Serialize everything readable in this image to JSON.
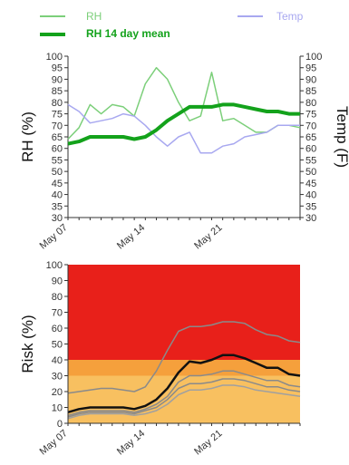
{
  "legend": {
    "rh": "RH",
    "temp": "Temp",
    "rh_mean": "RH 14 day mean",
    "colors": {
      "rh": "#7ccf7a",
      "temp": "#a8a8f0",
      "rh_mean": "#13a21b"
    }
  },
  "chart_data": [
    {
      "type": "line",
      "x": [
        "May 07",
        "May 08",
        "May 09",
        "May 10",
        "May 11",
        "May 12",
        "May 13",
        "May 14",
        "May 15",
        "May 16",
        "May 17",
        "May 18",
        "May 19",
        "May 20",
        "May 21",
        "May 22",
        "May 23",
        "May 24",
        "May 25",
        "May 26",
        "May 27",
        "May 28"
      ],
      "x_tick_labels": [
        "May 07",
        "May 14",
        "May 21"
      ],
      "series": [
        {
          "name": "RH",
          "axis": "left",
          "color": "#7ccf7a",
          "values": [
            64,
            69,
            79,
            75,
            79,
            78,
            74,
            88,
            95,
            90,
            80,
            72,
            74,
            93,
            72,
            73,
            70,
            67,
            67,
            70,
            70,
            69
          ]
        },
        {
          "name": "Temp",
          "axis": "right",
          "color": "#a8a8f0",
          "values": [
            79,
            76,
            71,
            72,
            73,
            75,
            74,
            70,
            65,
            61,
            65,
            67,
            58,
            58,
            61,
            62,
            65,
            66,
            67,
            70,
            70,
            70
          ]
        },
        {
          "name": "RH 14 day mean",
          "axis": "right",
          "color": "#13a21b",
          "values": [
            62,
            63,
            65,
            65,
            65,
            65,
            64,
            65,
            68,
            72,
            75,
            78,
            78,
            78,
            79,
            79,
            78,
            77,
            76,
            76,
            75,
            75
          ]
        }
      ],
      "ylabel": "RH (%)",
      "ylabel_right": "Temp (F)",
      "ylim": [
        30,
        100
      ],
      "yticks": [
        30,
        35,
        40,
        45,
        50,
        55,
        60,
        65,
        70,
        75,
        80,
        85,
        90,
        95,
        100
      ],
      "grid": false
    },
    {
      "type": "area",
      "x": [
        "May 07",
        "May 08",
        "May 09",
        "May 10",
        "May 11",
        "May 12",
        "May 13",
        "May 14",
        "May 15",
        "May 16",
        "May 17",
        "May 18",
        "May 19",
        "May 20",
        "May 21",
        "May 22",
        "May 23",
        "May 24",
        "May 25",
        "May 26",
        "May 27",
        "May 28"
      ],
      "x_tick_labels": [
        "May 07",
        "May 14",
        "May 21"
      ],
      "bands": [
        {
          "from": 0,
          "to": 30,
          "color": "#f8c060"
        },
        {
          "from": 30,
          "to": 40,
          "color": "#f5a03c"
        },
        {
          "from": 40,
          "to": 100,
          "color": "#e8201a"
        }
      ],
      "series": [
        {
          "name": "",
          "role": "upper",
          "color": "#8a8a8a",
          "values": [
            19,
            20,
            21,
            22,
            22,
            21,
            20,
            23,
            33,
            46,
            58,
            61,
            61,
            62,
            64,
            64,
            63,
            59,
            56,
            55,
            52,
            51
          ]
        },
        {
          "name": "",
          "role": "median",
          "color": "#111111",
          "values": [
            7,
            9,
            10,
            10,
            10,
            10,
            9,
            11,
            15,
            22,
            32,
            39,
            38,
            40,
            43,
            43,
            41,
            38,
            35,
            35,
            31,
            30
          ]
        },
        {
          "name": "",
          "role": "upper-inner",
          "color": "#8a8a8a",
          "values": [
            5,
            7,
            8,
            8,
            8,
            8,
            7,
            9,
            12,
            17,
            26,
            30,
            30,
            31,
            33,
            33,
            31,
            29,
            27,
            27,
            24,
            23
          ]
        },
        {
          "name": "",
          "role": "lower-inner",
          "color": "#8a8a8a",
          "values": [
            4,
            6,
            7,
            7,
            7,
            7,
            6,
            8,
            10,
            15,
            22,
            25,
            25,
            26,
            28,
            28,
            27,
            25,
            23,
            23,
            21,
            20
          ]
        },
        {
          "name": "",
          "role": "lower",
          "color": "#a0a0a0",
          "values": [
            3,
            5,
            6,
            6,
            6,
            6,
            5,
            6,
            8,
            12,
            18,
            21,
            21,
            22,
            24,
            24,
            23,
            21,
            20,
            19,
            18,
            17
          ]
        }
      ],
      "ylabel": "Risk (%)",
      "ylim": [
        0,
        100
      ],
      "yticks": [
        0,
        10,
        20,
        30,
        40,
        50,
        60,
        70,
        80,
        90,
        100
      ],
      "grid": false
    }
  ]
}
